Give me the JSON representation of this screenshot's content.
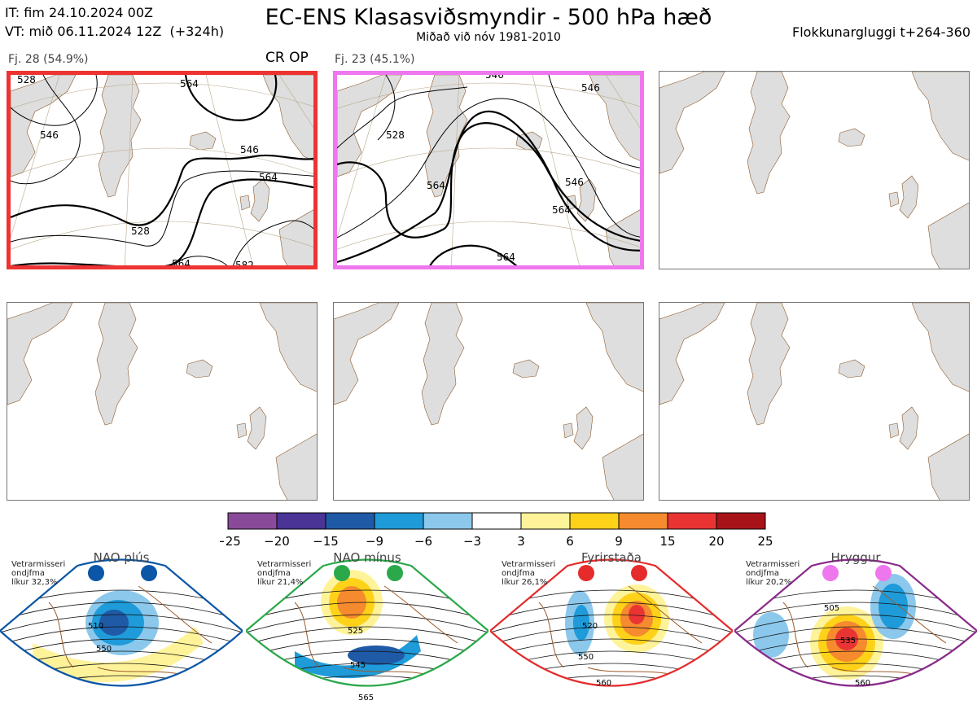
{
  "header": {
    "it": "IT: fim 24.10.2024 00Z",
    "vt": "VT: mið 06.11.2024 12Z  (+324h)",
    "title": "EC-ENS Klasasviðsmyndir - 500 hPa hæð",
    "subtitle": "Miðað við nóv 1981-2010",
    "window": "Flokkunargluggi t+264-360"
  },
  "panels": [
    {
      "label": "Fj. 28 (54.9%)",
      "tag": "CR OP",
      "border": "#ee3333",
      "contours": [
        "528",
        "546",
        "564",
        "546",
        "564",
        "582",
        "528",
        "564"
      ]
    },
    {
      "label": "Fj. 23 (45.1%)",
      "tag": "",
      "border": "#ee77ee",
      "contours": [
        "546",
        "528",
        "564",
        "546",
        "564",
        "564",
        "546"
      ]
    },
    {
      "label": "",
      "tag": "",
      "border": "",
      "contours": []
    },
    {
      "label": "",
      "tag": "",
      "border": "",
      "contours": []
    },
    {
      "label": "",
      "tag": "",
      "border": "",
      "contours": []
    },
    {
      "label": "",
      "tag": "",
      "border": "",
      "contours": []
    }
  ],
  "colorbar": {
    "colors": [
      "#8a4a9a",
      "#4a3496",
      "#1f5aa6",
      "#1f9bd9",
      "#8cc8ec",
      "#ffffff",
      "#fff39a",
      "#ffd21a",
      "#f58b2e",
      "#ea3434",
      "#a8131a"
    ],
    "labels": [
      "−25",
      "−20",
      "−15",
      "−9",
      "−6",
      "−3",
      "3",
      "6",
      "9",
      "15",
      "20",
      "25"
    ]
  },
  "regimes": [
    {
      "name": "NAO plús",
      "prob_lines": "Vetrarmisseri\nondjfma\nlíkur 32,3%",
      "color": "#0b56a6",
      "dot": "#0b56a6",
      "contours": [
        "510",
        "550"
      ]
    },
    {
      "name": "NAO mínus",
      "prob_lines": "Vetrarmisseri\nondjfma\nlíkur 21,4%",
      "color": "#2aa84a",
      "dot": "#2aa84a",
      "contours": [
        "525",
        "545",
        "565"
      ]
    },
    {
      "name": "Fyrirstaða",
      "prob_lines": "Vetrarmisseri\nondjfma\nlíkur 26,1%",
      "color": "#e52b2b",
      "dot": "#e52b2b",
      "contours": [
        "520",
        "550",
        "560"
      ]
    },
    {
      "name": "Hryggur",
      "prob_lines": "Vetrarmisseri\nondjfma\nlíkur 20,2%",
      "color": "#8a2a8a",
      "dot": "#ee77ee",
      "contours": [
        "505",
        "535",
        "560"
      ]
    }
  ]
}
